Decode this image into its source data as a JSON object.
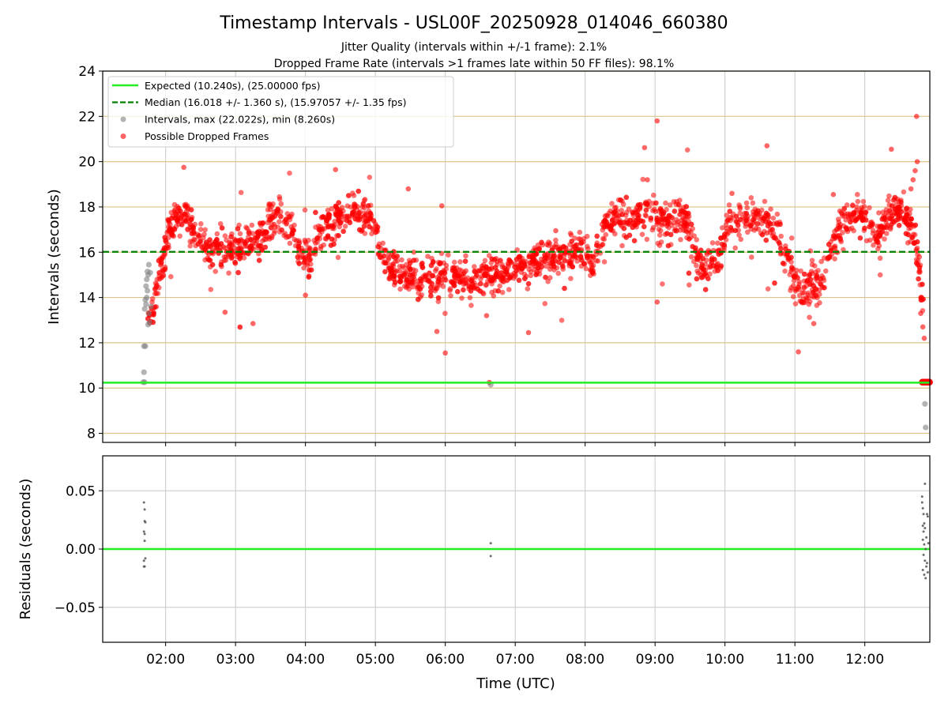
{
  "chart_data": {
    "type": "scatter",
    "title": "Timestamp Intervals - USL00F_20250928_014046_660380",
    "subtitle_lines": [
      "Jitter Quality (intervals within +/-1 frame): 2.1%",
      "Dropped Frame Rate (intervals >1 frames late within 50 FF files): 98.1%"
    ],
    "xlabel": "Time (UTC)",
    "x_ticks": [
      "02:00",
      "03:00",
      "04:00",
      "05:00",
      "06:00",
      "07:00",
      "08:00",
      "09:00",
      "10:00",
      "11:00",
      "12:00"
    ],
    "x_range_hours": [
      1.1,
      12.93
    ],
    "panels": [
      {
        "name": "intervals",
        "ylabel": "Intervals (seconds)",
        "ylim": [
          7.6,
          24
        ],
        "y_ticks": [
          "8",
          "10",
          "12",
          "14",
          "16",
          "18",
          "20",
          "22",
          "24"
        ],
        "expected": 10.24,
        "median": 16.018,
        "legend": [
          "Expected (10.240s), (25.00000 fps)",
          "Median (16.018 +/- 1.360 s), (15.97057 +/- 1.35 fps)",
          "Intervals, max (22.022s), min (8.260s)",
          "Possible Dropped Frames"
        ],
        "legend_position": "upper-left",
        "trend": [
          [
            1.72,
            13.0
          ],
          [
            1.82,
            13.6
          ],
          [
            1.92,
            15.2
          ],
          [
            2.02,
            16.6
          ],
          [
            2.12,
            17.5
          ],
          [
            2.25,
            17.7
          ],
          [
            2.38,
            17.2
          ],
          [
            2.5,
            16.3
          ],
          [
            2.7,
            16.0
          ],
          [
            2.9,
            16.1
          ],
          [
            3.1,
            16.3
          ],
          [
            3.3,
            16.5
          ],
          [
            3.45,
            17.1
          ],
          [
            3.6,
            17.5
          ],
          [
            3.8,
            17.3
          ],
          [
            3.92,
            15.9
          ],
          [
            4.05,
            15.7
          ],
          [
            4.18,
            16.6
          ],
          [
            4.35,
            17.4
          ],
          [
            4.55,
            17.6
          ],
          [
            4.75,
            17.7
          ],
          [
            4.95,
            17.5
          ],
          [
            5.05,
            16.3
          ],
          [
            5.2,
            15.4
          ],
          [
            5.4,
            15.0
          ],
          [
            5.6,
            14.8
          ],
          [
            5.8,
            14.9
          ],
          [
            6.0,
            14.9
          ],
          [
            6.3,
            14.9
          ],
          [
            6.6,
            15.0
          ],
          [
            6.9,
            15.1
          ],
          [
            7.2,
            15.4
          ],
          [
            7.5,
            15.7
          ],
          [
            7.8,
            15.9
          ],
          [
            8.0,
            16.2
          ],
          [
            8.12,
            15.3
          ],
          [
            8.22,
            16.5
          ],
          [
            8.35,
            17.4
          ],
          [
            8.6,
            17.5
          ],
          [
            8.9,
            17.6
          ],
          [
            9.2,
            17.4
          ],
          [
            9.45,
            17.5
          ],
          [
            9.6,
            15.6
          ],
          [
            9.7,
            15.3
          ],
          [
            9.85,
            15.5
          ],
          [
            9.95,
            16.3
          ],
          [
            10.05,
            17.3
          ],
          [
            10.3,
            17.5
          ],
          [
            10.55,
            17.5
          ],
          [
            10.75,
            17.2
          ],
          [
            10.85,
            15.7
          ],
          [
            10.95,
            15.1
          ],
          [
            11.1,
            14.2
          ],
          [
            11.25,
            14.8
          ],
          [
            11.35,
            14.3
          ],
          [
            11.45,
            15.3
          ],
          [
            11.55,
            16.3
          ],
          [
            11.7,
            17.4
          ],
          [
            11.9,
            17.6
          ],
          [
            12.05,
            17.7
          ],
          [
            12.15,
            16.5
          ],
          [
            12.3,
            17.5
          ],
          [
            12.5,
            17.8
          ],
          [
            12.65,
            17.2
          ],
          [
            12.75,
            16.0
          ],
          [
            12.8,
            14.6
          ],
          [
            12.84,
            13.0
          ]
        ],
        "gray_points": [
          [
            1.68,
            10.26
          ],
          [
            1.7,
            10.26
          ],
          [
            1.69,
            10.7
          ],
          [
            1.69,
            11.85
          ],
          [
            1.71,
            11.85
          ],
          [
            1.7,
            13.5
          ],
          [
            1.72,
            13.7
          ],
          [
            1.73,
            14.0
          ],
          [
            1.74,
            14.3
          ],
          [
            1.76,
            13.3
          ],
          [
            1.75,
            12.8
          ],
          [
            1.77,
            12.9
          ],
          [
            1.73,
            14.8
          ],
          [
            1.75,
            15.0
          ],
          [
            1.74,
            15.15
          ],
          [
            1.78,
            15.1
          ],
          [
            1.76,
            15.45
          ],
          [
            1.71,
            13.9
          ],
          [
            1.72,
            14.5
          ],
          [
            1.79,
            13.6
          ],
          [
            6.65,
            10.15
          ],
          [
            12.86,
            9.3
          ],
          [
            12.87,
            8.26
          ]
        ],
        "red_singletons": [
          [
            2.26,
            19.75
          ],
          [
            3.25,
            12.85
          ],
          [
            4.43,
            19.65
          ],
          [
            5.47,
            18.8
          ],
          [
            5.95,
            18.05
          ],
          [
            6.0,
            11.55
          ],
          [
            6.63,
            10.25
          ],
          [
            7.19,
            12.45
          ],
          [
            8.85,
            20.62
          ],
          [
            8.89,
            19.2
          ],
          [
            9.03,
            21.8
          ],
          [
            9.03,
            13.8
          ],
          [
            10.6,
            20.7
          ],
          [
            11.05,
            11.6
          ],
          [
            11.27,
            12.85
          ],
          [
            12.38,
            20.55
          ],
          [
            12.74,
            22.0
          ],
          [
            12.75,
            20.0
          ],
          [
            12.72,
            19.6
          ],
          [
            12.69,
            19.2
          ],
          [
            12.66,
            18.8
          ],
          [
            12.78,
            15.8
          ],
          [
            12.8,
            13.3
          ],
          [
            12.83,
            12.7
          ],
          [
            12.85,
            12.2
          ],
          [
            2.85,
            13.35
          ],
          [
            5.88,
            12.5
          ],
          [
            6.59,
            13.2
          ],
          [
            4.0,
            14.1
          ],
          [
            7.58,
            16.95
          ],
          [
            10.1,
            18.6
          ],
          [
            11.55,
            18.55
          ]
        ],
        "red_tail": [
          12.82,
          12.93,
          10.26
        ]
      },
      {
        "name": "residuals",
        "ylabel": "Residuals (seconds)",
        "ylim": [
          -0.08,
          0.08
        ],
        "y_ticks": [
          "0.05",
          "0.00",
          "−0.05"
        ],
        "zero_line": 0.0,
        "points": [
          [
            1.69,
            0.04
          ],
          [
            1.7,
            0.034
          ],
          [
            1.7,
            0.024
          ],
          [
            1.71,
            0.023
          ],
          [
            1.69,
            0.015
          ],
          [
            1.7,
            0.013
          ],
          [
            1.7,
            0.007
          ],
          [
            1.69,
            -0.01
          ],
          [
            1.71,
            -0.008
          ],
          [
            1.69,
            -0.015
          ],
          [
            1.7,
            -0.015
          ],
          [
            6.65,
            0.005
          ],
          [
            6.65,
            -0.006
          ],
          [
            12.82,
            0.045
          ],
          [
            12.82,
            0.04
          ],
          [
            12.83,
            0.035
          ],
          [
            12.84,
            0.03
          ],
          [
            12.86,
            0.056
          ],
          [
            12.85,
            0.022
          ],
          [
            12.83,
            0.02
          ],
          [
            12.84,
            0.015
          ],
          [
            12.86,
            0.018
          ],
          [
            12.88,
            0.01
          ],
          [
            12.83,
            0.008
          ],
          [
            12.85,
            0.004
          ],
          [
            12.87,
            0.0
          ],
          [
            12.84,
            -0.005
          ],
          [
            12.86,
            -0.01
          ],
          [
            12.88,
            -0.015
          ],
          [
            12.83,
            -0.018
          ],
          [
            12.85,
            -0.022
          ],
          [
            12.87,
            -0.025
          ],
          [
            12.89,
            -0.012
          ],
          [
            12.9,
            0.028
          ],
          [
            12.91,
            0.005
          ],
          [
            12.89,
            0.03
          ],
          [
            12.9,
            -0.02
          ]
        ]
      }
    ],
    "colors": {
      "expected": "#22ee22",
      "median": "#008000",
      "interval_points": "#808080",
      "dropped_points": "#ff0000",
      "residual_points": "#555555",
      "grid_vertical": "#c8c8c8",
      "grid_horizontal": "#d9c588"
    },
    "grid": true
  }
}
